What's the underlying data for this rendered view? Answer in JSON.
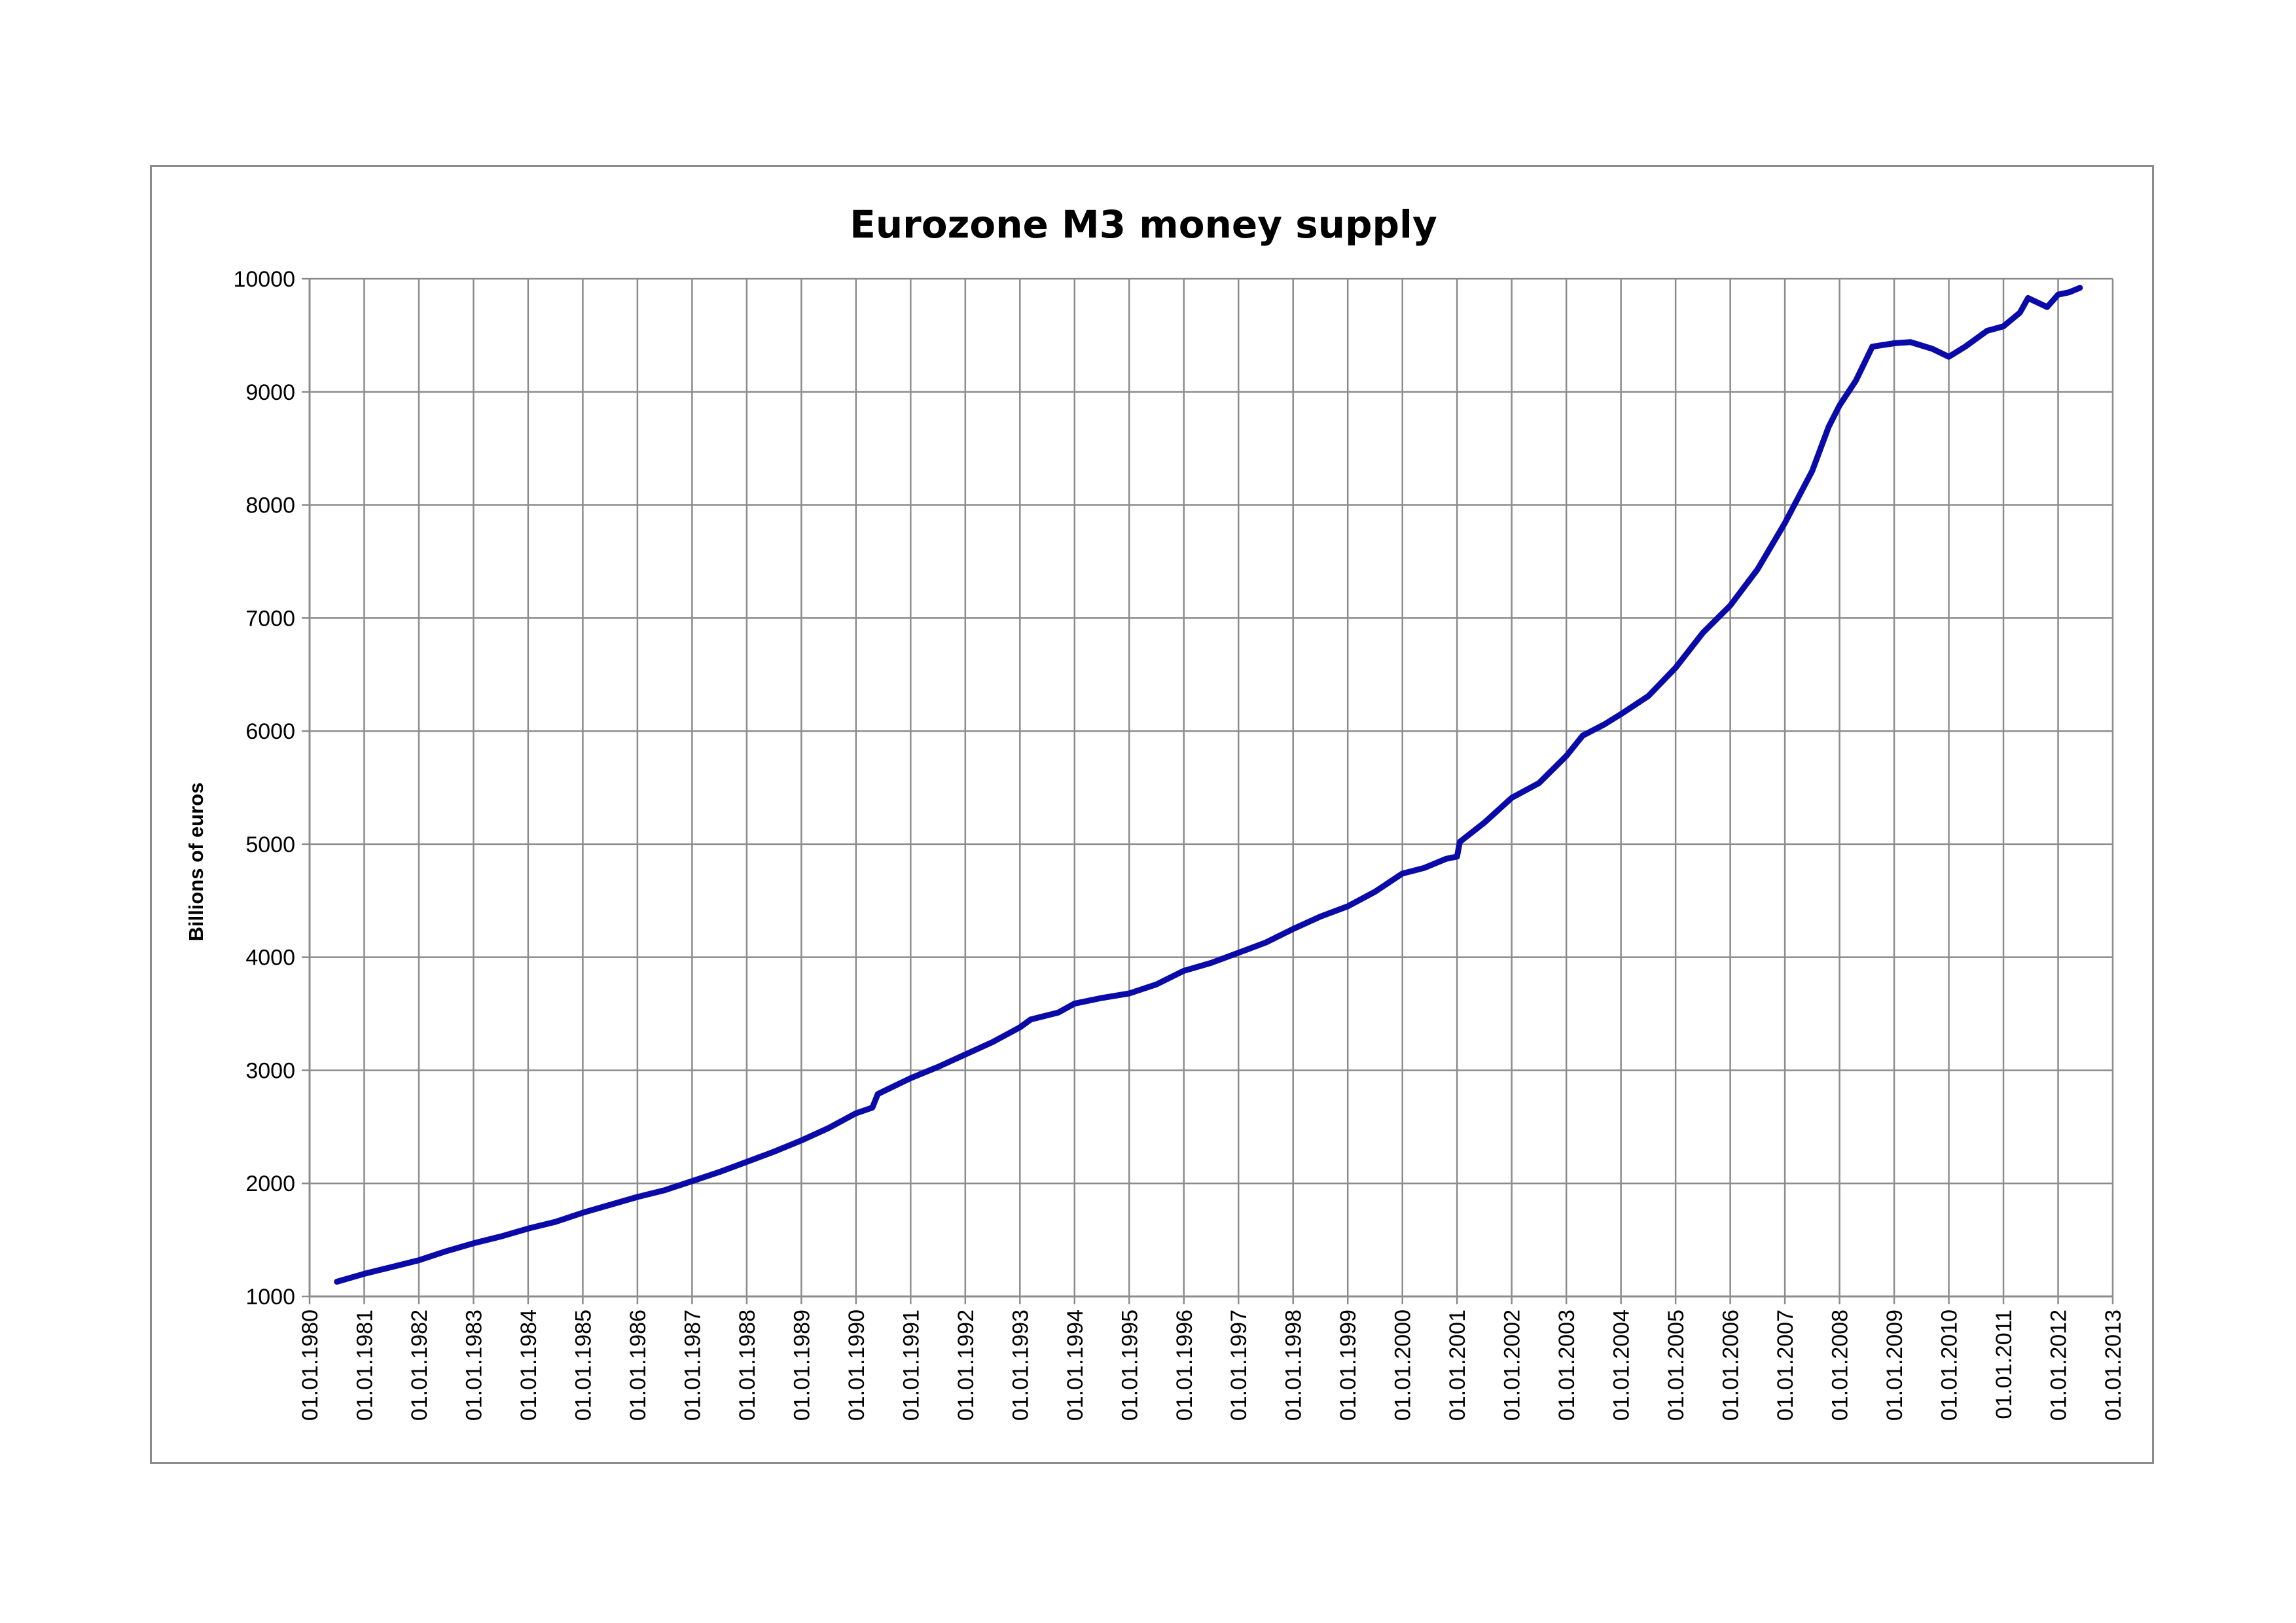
{
  "chart_data": {
    "type": "line",
    "title": "Eurozone M3 money supply",
    "xlabel": "",
    "ylabel": "Billions of euros",
    "ylim": [
      1000,
      10000
    ],
    "xlim": [
      1980,
      2013
    ],
    "yticks": [
      1000,
      2000,
      3000,
      4000,
      5000,
      6000,
      7000,
      8000,
      9000,
      10000
    ],
    "xticks": [
      {
        "year": 1980,
        "label": "01.01.1980"
      },
      {
        "year": 1981,
        "label": "01.01.1981"
      },
      {
        "year": 1982,
        "label": "01.01.1982"
      },
      {
        "year": 1983,
        "label": "01.01.1983"
      },
      {
        "year": 1984,
        "label": "01.01.1984"
      },
      {
        "year": 1985,
        "label": "01.01.1985"
      },
      {
        "year": 1986,
        "label": "01.01.1986"
      },
      {
        "year": 1987,
        "label": "01.01.1987"
      },
      {
        "year": 1988,
        "label": "01.01.1988"
      },
      {
        "year": 1989,
        "label": "01.01.1989"
      },
      {
        "year": 1990,
        "label": "01.01.1990"
      },
      {
        "year": 1991,
        "label": "01.01.1991"
      },
      {
        "year": 1992,
        "label": "01.01.1992"
      },
      {
        "year": 1993,
        "label": "01.01.1993"
      },
      {
        "year": 1994,
        "label": "01.01.1994"
      },
      {
        "year": 1995,
        "label": "01.01.1995"
      },
      {
        "year": 1996,
        "label": "01.01.1996"
      },
      {
        "year": 1997,
        "label": "01.01.1997"
      },
      {
        "year": 1998,
        "label": "01.01.1998"
      },
      {
        "year": 1999,
        "label": "01.01.1999"
      },
      {
        "year": 2000,
        "label": "01.01.2000"
      },
      {
        "year": 2001,
        "label": "01.01.2001"
      },
      {
        "year": 2002,
        "label": "01.01.2002"
      },
      {
        "year": 2003,
        "label": "01.01.2003"
      },
      {
        "year": 2004,
        "label": "01.01.2004"
      },
      {
        "year": 2005,
        "label": "01.01.2005"
      },
      {
        "year": 2006,
        "label": "01.01.2006"
      },
      {
        "year": 2007,
        "label": "01.01.2007"
      },
      {
        "year": 2008,
        "label": "01.01.2008"
      },
      {
        "year": 2009,
        "label": "01.01.2009"
      },
      {
        "year": 2010,
        "label": "01.01.2010"
      },
      {
        "year": 2011,
        "label": "01.01.2011"
      },
      {
        "year": 2012,
        "label": "01.01.2012"
      },
      {
        "year": 2013,
        "label": "01.01.2013"
      }
    ],
    "grid": true,
    "legend": "none",
    "series": [
      {
        "color": "#0a0aa8",
        "points": [
          [
            1980.5,
            1130
          ],
          [
            1981.0,
            1200
          ],
          [
            1981.5,
            1260
          ],
          [
            1982.0,
            1320
          ],
          [
            1982.5,
            1400
          ],
          [
            1983.0,
            1470
          ],
          [
            1983.5,
            1530
          ],
          [
            1984.0,
            1600
          ],
          [
            1984.5,
            1660
          ],
          [
            1985.0,
            1740
          ],
          [
            1985.5,
            1810
          ],
          [
            1986.0,
            1880
          ],
          [
            1986.5,
            1940
          ],
          [
            1987.0,
            2020
          ],
          [
            1987.5,
            2100
          ],
          [
            1988.0,
            2190
          ],
          [
            1988.5,
            2280
          ],
          [
            1989.0,
            2380
          ],
          [
            1989.5,
            2490
          ],
          [
            1990.0,
            2620
          ],
          [
            1990.3,
            2670
          ],
          [
            1990.4,
            2790
          ],
          [
            1990.7,
            2860
          ],
          [
            1991.0,
            2930
          ],
          [
            1991.5,
            3030
          ],
          [
            1992.0,
            3140
          ],
          [
            1992.5,
            3250
          ],
          [
            1993.0,
            3380
          ],
          [
            1993.2,
            3450
          ],
          [
            1993.7,
            3510
          ],
          [
            1994.0,
            3590
          ],
          [
            1994.5,
            3640
          ],
          [
            1995.0,
            3680
          ],
          [
            1995.5,
            3760
          ],
          [
            1996.0,
            3880
          ],
          [
            1996.5,
            3950
          ],
          [
            1997.0,
            4040
          ],
          [
            1997.5,
            4130
          ],
          [
            1998.0,
            4250
          ],
          [
            1998.5,
            4360
          ],
          [
            1999.0,
            4450
          ],
          [
            1999.5,
            4580
          ],
          [
            2000.0,
            4740
          ],
          [
            2000.4,
            4790
          ],
          [
            2000.8,
            4870
          ],
          [
            2001.0,
            4890
          ],
          [
            2001.05,
            5020
          ],
          [
            2001.5,
            5190
          ],
          [
            2002.0,
            5410
          ],
          [
            2002.5,
            5540
          ],
          [
            2003.0,
            5780
          ],
          [
            2003.3,
            5960
          ],
          [
            2003.7,
            6060
          ],
          [
            2004.0,
            6150
          ],
          [
            2004.5,
            6310
          ],
          [
            2005.0,
            6560
          ],
          [
            2005.5,
            6870
          ],
          [
            2006.0,
            7110
          ],
          [
            2006.5,
            7430
          ],
          [
            2007.0,
            7840
          ],
          [
            2007.5,
            8300
          ],
          [
            2007.8,
            8690
          ],
          [
            2008.0,
            8880
          ],
          [
            2008.3,
            9100
          ],
          [
            2008.6,
            9400
          ],
          [
            2009.0,
            9430
          ],
          [
            2009.3,
            9440
          ],
          [
            2009.7,
            9380
          ],
          [
            2010.0,
            9310
          ],
          [
            2010.3,
            9400
          ],
          [
            2010.7,
            9540
          ],
          [
            2011.0,
            9580
          ],
          [
            2011.3,
            9700
          ],
          [
            2011.45,
            9830
          ],
          [
            2011.8,
            9750
          ],
          [
            2012.0,
            9860
          ],
          [
            2012.2,
            9880
          ],
          [
            2012.4,
            9920
          ]
        ]
      }
    ]
  }
}
